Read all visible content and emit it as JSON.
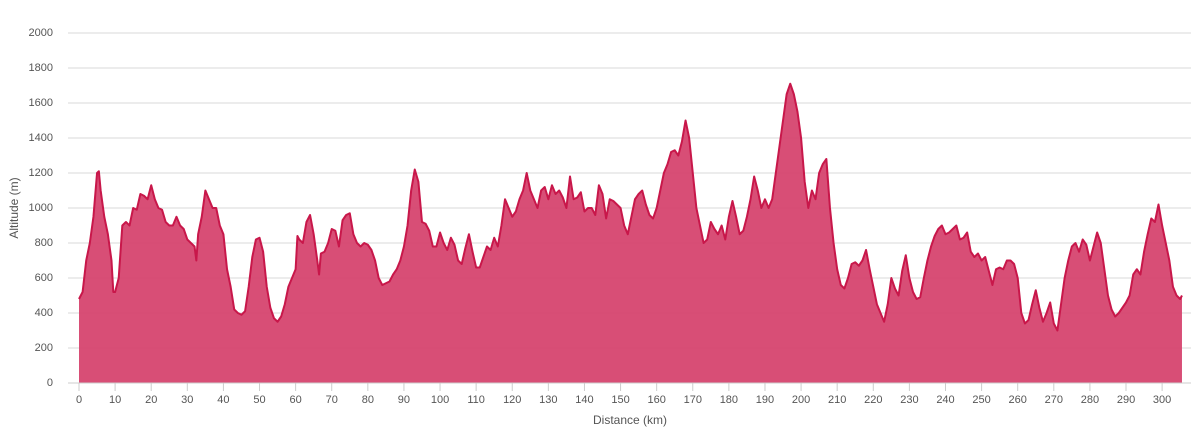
{
  "chart_data": {
    "type": "area",
    "xlabel": "Distance (km)",
    "ylabel": "Altitude (m)",
    "xlim": [
      0,
      308
    ],
    "ylim": [
      0,
      2000
    ],
    "xticks": [
      0,
      10,
      20,
      30,
      40,
      50,
      60,
      70,
      80,
      90,
      100,
      110,
      120,
      130,
      140,
      150,
      160,
      170,
      180,
      190,
      200,
      210,
      220,
      230,
      240,
      250,
      260,
      270,
      280,
      290,
      300
    ],
    "yticks": [
      0,
      200,
      400,
      600,
      800,
      1000,
      1200,
      1400,
      1600,
      1800,
      2000
    ],
    "grid": true,
    "color": "#d6456f",
    "line_color": "#c8174a",
    "x": [
      0,
      1,
      2,
      3,
      4,
      5,
      5.5,
      6,
      7,
      8,
      9,
      9.5,
      10,
      11,
      12,
      13,
      14,
      15,
      16,
      17,
      18,
      19,
      20,
      21,
      22,
      23,
      24,
      25,
      26,
      27,
      28,
      29,
      30,
      31,
      32,
      32.5,
      33,
      34,
      35,
      36,
      37,
      38,
      39,
      40,
      41,
      42,
      43,
      44,
      45,
      46,
      47,
      48,
      49,
      50,
      51,
      52,
      53,
      54,
      55,
      56,
      57,
      58,
      59,
      60,
      60.5,
      61,
      62,
      63,
      64,
      65,
      66,
      66.5,
      67,
      68,
      69,
      70,
      71,
      72,
      73,
      74,
      75,
      76,
      77,
      78,
      79,
      80,
      81,
      82,
      83,
      84,
      85,
      86,
      87,
      88,
      89,
      90,
      91,
      92,
      93,
      94,
      95,
      96,
      97,
      98,
      99,
      100,
      101,
      102,
      103,
      104,
      105,
      106,
      107,
      108,
      109,
      110,
      111,
      112,
      113,
      114,
      115,
      116,
      117,
      118,
      119,
      120,
      121,
      122,
      123,
      124,
      125,
      126,
      127,
      128,
      129,
      130,
      131,
      132,
      133,
      134,
      135,
      136,
      137,
      138,
      139,
      140,
      141,
      142,
      143,
      144,
      145,
      146,
      147,
      148,
      149,
      150,
      151,
      152,
      153,
      154,
      155,
      156,
      157,
      158,
      159,
      160,
      161,
      162,
      163,
      164,
      165,
      166,
      167,
      168,
      169,
      170,
      171,
      172,
      173,
      174,
      175,
      176,
      177,
      178,
      179,
      180,
      181,
      182,
      183,
      184,
      185,
      186,
      187,
      188,
      189,
      190,
      191,
      192,
      193,
      194,
      195,
      196,
      197,
      198,
      199,
      200,
      201,
      202,
      203,
      204,
      205,
      206,
      207,
      208,
      209,
      210,
      211,
      212,
      213,
      214,
      215,
      216,
      217,
      218,
      219,
      220,
      221,
      222,
      223,
      224,
      225,
      226,
      227,
      228,
      229,
      230,
      231,
      232,
      233,
      234,
      235,
      236,
      237,
      238,
      239,
      240,
      241,
      242,
      243,
      244,
      245,
      246,
      247,
      248,
      249,
      250,
      251,
      252,
      253,
      254,
      255,
      256,
      257,
      258,
      259,
      260,
      261,
      262,
      263,
      264,
      265,
      266,
      267,
      268,
      269,
      270,
      271,
      272,
      273,
      274,
      275,
      276,
      277,
      278,
      279,
      280,
      281,
      282,
      283,
      284,
      285,
      286,
      287,
      288,
      289,
      290,
      291,
      292,
      293,
      294,
      295,
      296,
      297,
      298,
      299,
      300,
      301,
      302,
      303,
      304,
      305,
      305.5
    ],
    "values": [
      480,
      520,
      700,
      800,
      950,
      1200,
      1210,
      1100,
      950,
      850,
      700,
      520,
      520,
      600,
      900,
      920,
      900,
      1000,
      990,
      1080,
      1070,
      1050,
      1130,
      1050,
      1000,
      990,
      920,
      900,
      900,
      950,
      900,
      880,
      820,
      800,
      780,
      700,
      850,
      950,
      1100,
      1050,
      1000,
      1000,
      900,
      850,
      650,
      550,
      420,
      400,
      390,
      410,
      550,
      720,
      820,
      830,
      750,
      550,
      430,
      370,
      350,
      380,
      450,
      550,
      600,
      650,
      840,
      820,
      800,
      920,
      960,
      850,
      700,
      620,
      740,
      750,
      800,
      880,
      870,
      780,
      930,
      960,
      970,
      850,
      800,
      780,
      800,
      790,
      760,
      700,
      600,
      560,
      570,
      580,
      620,
      650,
      700,
      780,
      900,
      1100,
      1220,
      1150,
      920,
      910,
      870,
      780,
      780,
      860,
      800,
      760,
      830,
      790,
      700,
      680,
      770,
      850,
      750,
      660,
      660,
      720,
      780,
      760,
      830,
      780,
      900,
      1050,
      1000,
      950,
      980,
      1050,
      1100,
      1200,
      1100,
      1050,
      1000,
      1100,
      1120,
      1050,
      1130,
      1080,
      1100,
      1060,
      1000,
      1180,
      1050,
      1060,
      1090,
      980,
      1000,
      1000,
      960,
      1130,
      1080,
      940,
      1050,
      1040,
      1020,
      1000,
      900,
      850,
      950,
      1050,
      1080,
      1100,
      1020,
      960,
      940,
      1000,
      1100,
      1200,
      1250,
      1320,
      1330,
      1300,
      1380,
      1500,
      1400,
      1200,
      1000,
      900,
      800,
      820,
      920,
      880,
      850,
      900,
      820,
      950,
      1040,
      950,
      850,
      870,
      950,
      1050,
      1180,
      1100,
      1000,
      1050,
      1000,
      1050,
      1200,
      1350,
      1500,
      1650,
      1710,
      1650,
      1550,
      1400,
      1150,
      1000,
      1100,
      1050,
      1200,
      1250,
      1280,
      1000,
      800,
      650,
      560,
      540,
      600,
      680,
      690,
      670,
      700,
      760,
      650,
      550,
      450,
      400,
      350,
      450,
      600,
      540,
      500,
      640,
      730,
      600,
      520,
      480,
      490,
      600,
      700,
      780,
      840,
      880,
      900,
      850,
      860,
      880,
      900,
      820,
      830,
      860,
      750,
      720,
      740,
      700,
      720,
      640,
      560,
      650,
      660,
      650,
      700,
      700,
      680,
      600,
      400,
      340,
      360,
      450,
      530,
      430,
      350,
      400,
      460,
      340,
      300,
      450,
      600,
      700,
      780,
      800,
      750,
      820,
      790,
      700,
      780,
      860,
      800,
      650,
      500,
      420,
      380,
      400,
      430,
      460,
      500,
      620,
      650,
      620,
      750,
      850,
      940,
      920,
      1020,
      900,
      800,
      700,
      550,
      500,
      480,
      500
    ]
  }
}
